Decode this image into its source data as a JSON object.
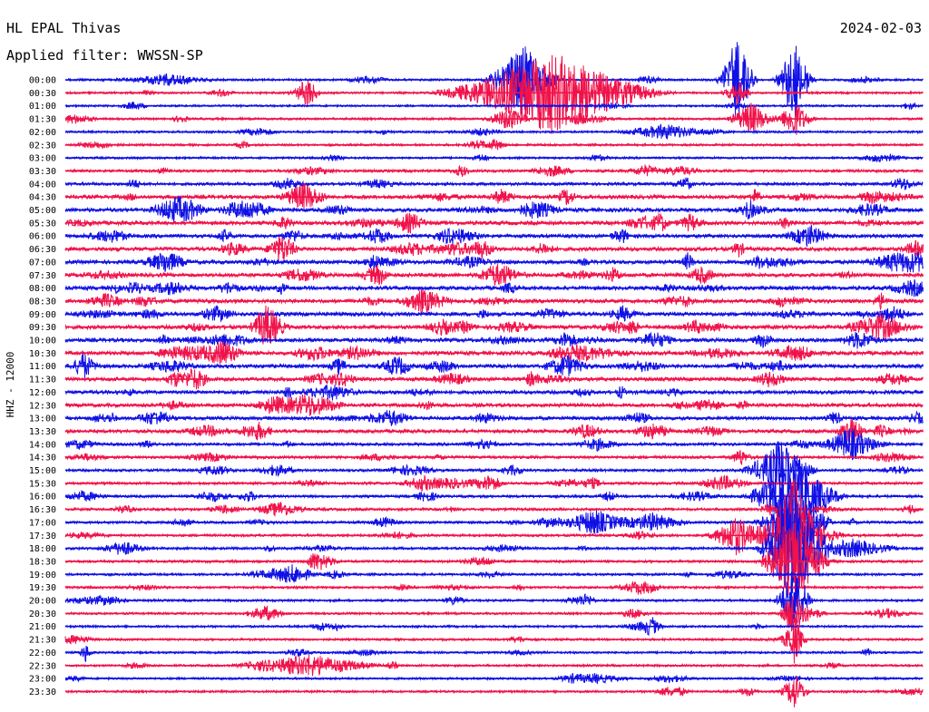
{
  "header": {
    "station": "HL EPAL Thivas",
    "date": "2024-02-03",
    "filter_label": "Applied filter: WWSSN-SP"
  },
  "side_label": "HHZ - 12000",
  "colors": {
    "blue": "#1010e6",
    "red": "#f0124a",
    "background": "#ffffff",
    "text": "#000000"
  },
  "chart_data": {
    "type": "line",
    "title": "HL EPAL Thivas",
    "xlabel": "",
    "ylabel": "HHZ - 12000",
    "line_start_times": [
      "00:00",
      "00:30",
      "01:00",
      "01:30",
      "02:00",
      "02:30",
      "03:00",
      "03:30",
      "04:00",
      "04:30",
      "05:00",
      "05:30",
      "06:00",
      "06:30",
      "07:00",
      "07:30",
      "08:00",
      "08:30",
      "09:00",
      "09:30",
      "10:00",
      "10:30",
      "11:00",
      "11:30",
      "12:00",
      "12:30",
      "13:00",
      "13:30",
      "14:00",
      "14:30",
      "15:00",
      "15:30",
      "16:00",
      "16:30",
      "17:00",
      "17:30",
      "18:00",
      "18:30",
      "19:00",
      "19:30",
      "20:00",
      "20:30",
      "21:00",
      "21:30",
      "22:00",
      "22:30",
      "23:00",
      "23:30"
    ],
    "minutes_per_line": 30,
    "series_colors": [
      "#1010e6",
      "#f0124a"
    ],
    "noise_level": [
      0.35,
      0.3,
      0.3,
      0.35,
      0.35,
      0.35,
      0.35,
      0.5,
      0.6,
      0.9,
      0.9,
      0.9,
      0.8,
      0.9,
      0.9,
      0.9,
      0.9,
      0.9,
      0.9,
      0.9,
      0.9,
      0.9,
      0.85,
      0.85,
      0.8,
      0.8,
      0.8,
      0.75,
      0.6,
      0.55,
      0.5,
      0.5,
      0.5,
      0.5,
      0.5,
      0.45,
      0.45,
      0.45,
      0.4,
      0.4,
      0.4,
      0.35,
      0.35,
      0.35,
      0.35,
      0.35,
      0.35,
      0.35
    ],
    "events": [
      {
        "line": "00:00",
        "minute": 3.5,
        "amplitude": 6,
        "duration_min": 2.0
      },
      {
        "line": "00:00",
        "minute": 16.0,
        "amplitude": 40,
        "duration_min": 1.5
      },
      {
        "line": "00:00",
        "minute": 23.5,
        "amplitude": 50,
        "duration_min": 0.8
      },
      {
        "line": "00:00",
        "minute": 25.5,
        "amplitude": 45,
        "duration_min": 0.8
      },
      {
        "line": "00:30",
        "minute": 8.5,
        "amplitude": 14,
        "duration_min": 0.5
      },
      {
        "line": "00:30",
        "minute": 17.0,
        "amplitude": 45,
        "duration_min": 4.5
      },
      {
        "line": "00:30",
        "minute": 23.5,
        "amplitude": 14,
        "duration_min": 0.6
      },
      {
        "line": "01:30",
        "minute": 15.5,
        "amplitude": 12,
        "duration_min": 1.0
      },
      {
        "line": "01:30",
        "minute": 24.0,
        "amplitude": 18,
        "duration_min": 1.0
      },
      {
        "line": "01:30",
        "minute": 25.5,
        "amplitude": 20,
        "duration_min": 0.8
      },
      {
        "line": "02:00",
        "minute": 21.0,
        "amplitude": 8,
        "duration_min": 2.0
      },
      {
        "line": "05:00",
        "minute": 6.5,
        "amplitude": 10,
        "duration_min": 1.0
      },
      {
        "line": "06:00",
        "minute": 26.0,
        "amplitude": 12,
        "duration_min": 1.0
      },
      {
        "line": "07:00",
        "minute": 3.5,
        "amplitude": 12,
        "duration_min": 1.0
      },
      {
        "line": "09:30",
        "minute": 28.5,
        "amplitude": 14,
        "duration_min": 1.5
      },
      {
        "line": "10:30",
        "minute": 5.5,
        "amplitude": 14,
        "duration_min": 1.0
      },
      {
        "line": "11:00",
        "minute": 17.5,
        "amplitude": 12,
        "duration_min": 1.0
      },
      {
        "line": "13:30",
        "minute": 27.5,
        "amplitude": 18,
        "duration_min": 0.6
      },
      {
        "line": "14:00",
        "minute": 27.5,
        "amplitude": 14,
        "duration_min": 1.5
      },
      {
        "line": "15:00",
        "minute": 25.0,
        "amplitude": 30,
        "duration_min": 1.5
      },
      {
        "line": "15:30",
        "minute": 12.5,
        "amplitude": 8,
        "duration_min": 1.0
      },
      {
        "line": "15:30",
        "minute": 23.0,
        "amplitude": 8,
        "duration_min": 1.2
      },
      {
        "line": "16:00",
        "minute": 25.5,
        "amplitude": 40,
        "duration_min": 2.0
      },
      {
        "line": "16:30",
        "minute": 7.5,
        "amplitude": 8,
        "duration_min": 1.2
      },
      {
        "line": "17:00",
        "minute": 18.5,
        "amplitude": 14,
        "duration_min": 1.5
      },
      {
        "line": "17:00",
        "minute": 20.5,
        "amplitude": 10,
        "duration_min": 1.5
      },
      {
        "line": "17:00",
        "minute": 25.5,
        "amplitude": 50,
        "duration_min": 1.5
      },
      {
        "line": "17:30",
        "minute": 23.5,
        "amplitude": 22,
        "duration_min": 1.2
      },
      {
        "line": "17:30",
        "minute": 25.5,
        "amplitude": 60,
        "duration_min": 1.5
      },
      {
        "line": "18:00",
        "minute": 2.0,
        "amplitude": 8,
        "duration_min": 1.0
      },
      {
        "line": "18:00",
        "minute": 25.5,
        "amplitude": 60,
        "duration_min": 1.5
      },
      {
        "line": "18:00",
        "minute": 27.5,
        "amplitude": 10,
        "duration_min": 2.0
      },
      {
        "line": "18:30",
        "minute": 25.5,
        "amplitude": 45,
        "duration_min": 1.5
      },
      {
        "line": "19:00",
        "minute": 8.0,
        "amplitude": 10,
        "duration_min": 1.0
      },
      {
        "line": "19:30",
        "minute": 20.0,
        "amplitude": 6,
        "duration_min": 1.0
      },
      {
        "line": "20:00",
        "minute": 25.5,
        "amplitude": 40,
        "duration_min": 0.8
      },
      {
        "line": "20:30",
        "minute": 7.0,
        "amplitude": 8,
        "duration_min": 1.0
      },
      {
        "line": "20:30",
        "minute": 25.5,
        "amplitude": 30,
        "duration_min": 0.6
      },
      {
        "line": "21:00",
        "minute": 20.5,
        "amplitude": 10,
        "duration_min": 0.5
      },
      {
        "line": "21:30",
        "minute": 25.5,
        "amplitude": 25,
        "duration_min": 0.5
      },
      {
        "line": "22:00",
        "minute": 0.7,
        "amplitude": 10,
        "duration_min": 0.3
      },
      {
        "line": "22:30",
        "minute": 8.5,
        "amplitude": 12,
        "duration_min": 3.0
      },
      {
        "line": "23:00",
        "minute": 18.5,
        "amplitude": 5,
        "duration_min": 1.5
      },
      {
        "line": "23:30",
        "minute": 25.5,
        "amplitude": 20,
        "duration_min": 0.6
      }
    ]
  }
}
